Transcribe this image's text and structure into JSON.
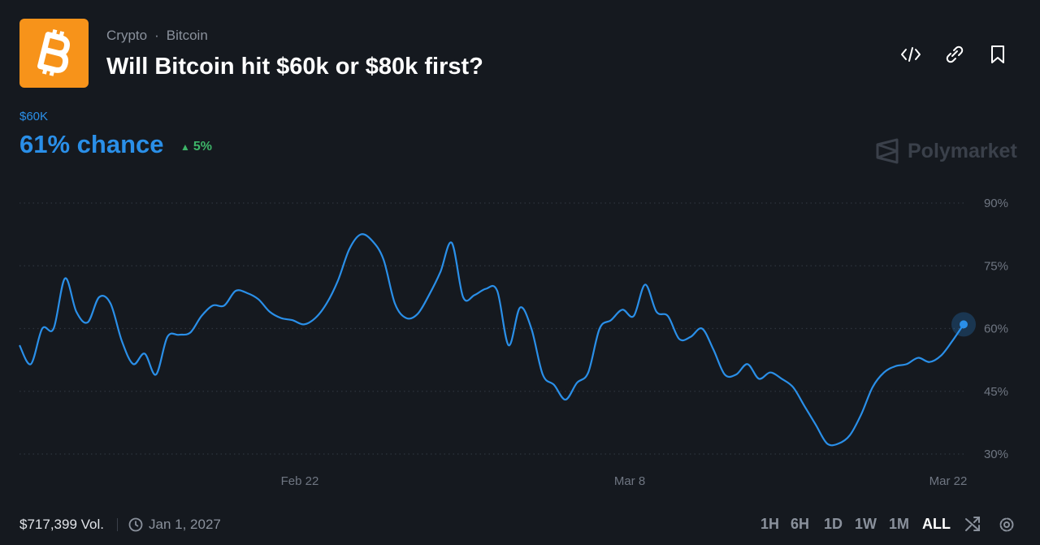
{
  "header": {
    "breadcrumb": [
      "Crypto",
      "Bitcoin"
    ],
    "title": "Will Bitcoin hit $60k or $80k first?"
  },
  "outcome": {
    "label": "$60K",
    "chance": "61% chance",
    "change": "5%"
  },
  "brand": "Polymarket",
  "footer": {
    "volume": "$717,399 Vol.",
    "end_date": "Jan 1, 2027",
    "ranges": [
      "1H",
      "6H",
      "1D",
      "1W",
      "1M",
      "ALL"
    ]
  },
  "chart_data": {
    "type": "line",
    "categories": [
      null,
      null,
      null,
      null,
      null,
      null,
      null,
      null,
      null,
      null,
      null,
      null,
      null,
      null,
      null,
      null,
      null,
      null,
      null,
      null,
      null,
      null,
      null,
      null,
      "Feb 22",
      null,
      null,
      null,
      null,
      null,
      null,
      null,
      null,
      null,
      null,
      null,
      null,
      null,
      null,
      null,
      null,
      null,
      null,
      null,
      null,
      null,
      null,
      null,
      null,
      null,
      null,
      null,
      null,
      "Mar 8",
      null,
      null,
      null,
      null,
      null,
      null,
      null,
      null,
      null,
      null,
      null,
      null,
      null,
      null,
      null,
      null,
      null,
      null,
      null,
      null,
      null,
      null,
      null,
      null,
      null,
      null,
      null,
      "Mar 22",
      null,
      null
    ],
    "series": [
      {
        "name": "$60K",
        "color": "#2a8fe8",
        "values": [
          56,
          51.5,
          60,
          60,
          72,
          64,
          61.5,
          67.5,
          66,
          57,
          51.5,
          54,
          49,
          58,
          58.5,
          59,
          63,
          65.5,
          65.5,
          69,
          68.5,
          67,
          64,
          62.5,
          62,
          61,
          62.5,
          66,
          71.5,
          79,
          82.5,
          81,
          76.5,
          66,
          62.5,
          63.5,
          68,
          73.5,
          80.5,
          67.5,
          68,
          69.5,
          69,
          56,
          65,
          60,
          49,
          46.5,
          43,
          47,
          49.5,
          60,
          62,
          64.5,
          63,
          70.5,
          64,
          63,
          57.5,
          58,
          60,
          55,
          49,
          49,
          51.5,
          48,
          49.5,
          48,
          46,
          41.5,
          37,
          32.5,
          32.5,
          34.5,
          39.5,
          46,
          49.5,
          51,
          51.5,
          53,
          52,
          53.5,
          57,
          61
        ]
      }
    ],
    "ylim": [
      30,
      90
    ],
    "yticks": [
      {
        "value": 30,
        "label": "30%"
      },
      {
        "value": 45,
        "label": "45%"
      },
      {
        "value": 60,
        "label": "60%"
      },
      {
        "value": 75,
        "label": "75%"
      },
      {
        "value": 90,
        "label": "90%"
      }
    ],
    "grid": true
  }
}
